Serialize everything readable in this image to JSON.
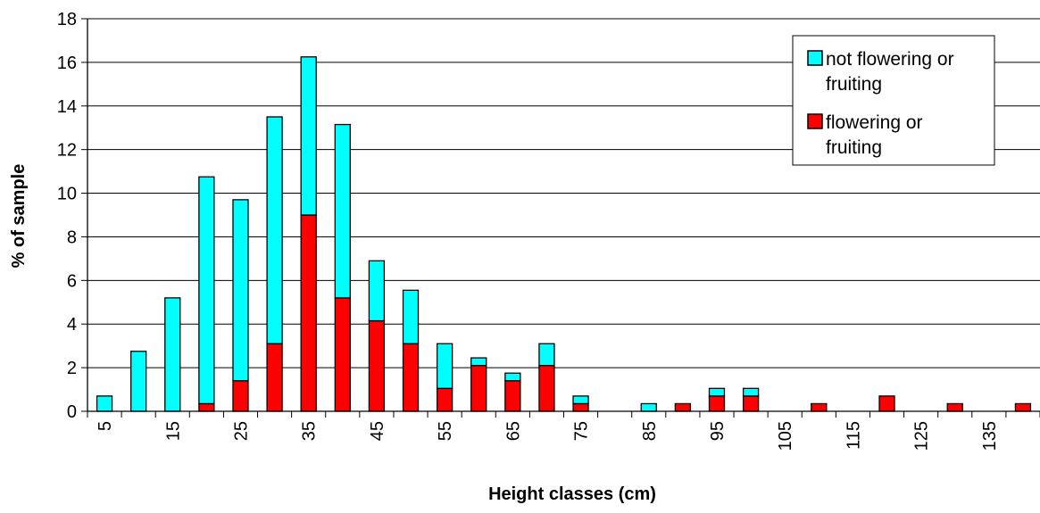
{
  "chart_data": {
    "type": "bar",
    "stacked": true,
    "title": "",
    "xlabel": "Height classes (cm)",
    "ylabel": "% of sample",
    "ylim": [
      0,
      18
    ],
    "yticks": [
      "0",
      "2",
      "4",
      "6",
      "8",
      "10",
      "12",
      "14",
      "16",
      "18"
    ],
    "categories": [
      "5",
      "10",
      "15",
      "20",
      "25",
      "30",
      "35",
      "40",
      "45",
      "50",
      "55",
      "60",
      "65",
      "70",
      "75",
      "80",
      "85",
      "90",
      "95",
      "100",
      "105",
      "110",
      "115",
      "120",
      "125",
      "130",
      "135",
      "140"
    ],
    "xtick_labels": [
      "5",
      "15",
      "25",
      "35",
      "45",
      "55",
      "65",
      "75",
      "85",
      "95",
      "105",
      "115",
      "125",
      "135"
    ],
    "grid": true,
    "legend_position": "top-right",
    "series": [
      {
        "name": "flowering or fruiting",
        "color": "#ff0000",
        "values": [
          0,
          0,
          0,
          0.35,
          1.4,
          3.1,
          9.0,
          5.2,
          4.15,
          3.1,
          1.05,
          2.1,
          1.4,
          2.1,
          0.35,
          0,
          0,
          0.35,
          0.7,
          0.7,
          0,
          0.35,
          0,
          0.7,
          0,
          0.35,
          0,
          0.35
        ]
      },
      {
        "name": "not flowering or fruiting",
        "color": "#00ffff",
        "values": [
          0.7,
          2.75,
          5.2,
          10.4,
          8.3,
          10.4,
          7.25,
          7.95,
          2.75,
          2.45,
          2.05,
          0.35,
          0.35,
          1.0,
          0.35,
          0,
          0.35,
          0,
          0.35,
          0.35,
          0,
          0,
          0,
          0,
          0,
          0,
          0,
          0
        ]
      }
    ],
    "legend": [
      {
        "line1": "not flowering or",
        "line2": "fruiting",
        "color": "#00ffff"
      },
      {
        "line1": "flowering or",
        "line2": "fruiting",
        "color": "#ff0000"
      }
    ]
  }
}
